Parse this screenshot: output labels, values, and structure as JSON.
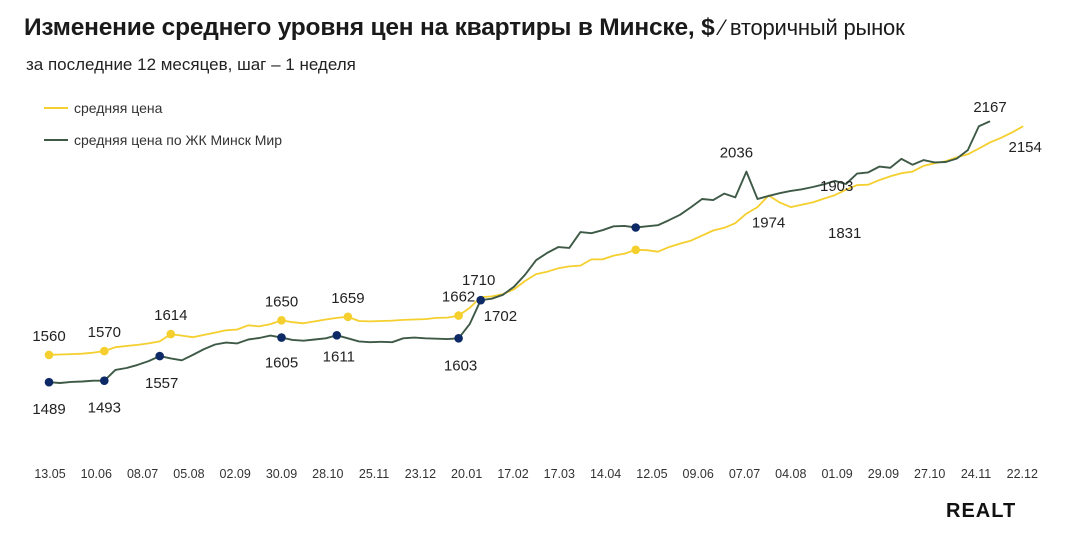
{
  "header": {
    "title": "Изменение среднего уровня цен на квартиры в Минске, $",
    "title_suffix": " ⁄ вторичный рынок",
    "subtitle": "за последние 12 месяцев, шаг – 1 неделя"
  },
  "brand": {
    "logo_text": "REALT"
  },
  "chart_data": {
    "type": "line",
    "title": "Изменение среднего уровня цен на квартиры в Минске, $",
    "xlabel": "",
    "ylabel": "",
    "ylim": [
      1350,
      2250
    ],
    "grid": false,
    "legend_position": "top-left",
    "x_ticks": [
      "13.05",
      "10.06",
      "08.07",
      "05.08",
      "02.09",
      "30.09",
      "28.10",
      "25.11",
      "23.12",
      "20.01",
      "17.02",
      "17.03",
      "14.04",
      "12.05",
      "09.06",
      "07.07",
      "04.08",
      "01.09",
      "29.09",
      "27.10",
      "24.11",
      "22.12"
    ],
    "series": [
      {
        "name": "средняя цена",
        "color": "#f5cf2d",
        "values": [
          1560,
          1561,
          1562,
          1563,
          1566,
          1570,
          1580,
          1583,
          1586,
          1590,
          1595,
          1614,
          1610,
          1606,
          1612,
          1618,
          1624,
          1626,
          1637,
          1634,
          1640,
          1650,
          1645,
          1642,
          1647,
          1652,
          1656,
          1659,
          1648,
          1647,
          1648,
          1649,
          1651,
          1652,
          1653,
          1656,
          1657,
          1662,
          1682,
          1710,
          1712,
          1718,
          1730,
          1752,
          1770,
          1776,
          1785,
          1790,
          1792,
          1808,
          1808,
          1818,
          1823,
          1833,
          1832,
          1828,
          1840,
          1849,
          1857,
          1870,
          1883,
          1890,
          1902,
          1927,
          1944,
          1974,
          1956,
          1944,
          1950,
          1956,
          1966,
          1975,
          1989,
          2001,
          2002,
          2014,
          2024,
          2032,
          2036,
          2051,
          2058,
          2063,
          2073,
          2081,
          2096,
          2112,
          2124,
          2138,
          2154
        ]
      },
      {
        "name": "средняя цена по ЖК Минск Мир",
        "color": "#3e5a47",
        "values": [
          1489,
          1487,
          1490,
          1491,
          1493,
          1493,
          1521,
          1526,
          1534,
          1544,
          1557,
          1551,
          1546,
          1560,
          1575,
          1587,
          1592,
          1590,
          1600,
          1604,
          1610,
          1605,
          1599,
          1597,
          1600,
          1603,
          1611,
          1603,
          1595,
          1593,
          1594,
          1593,
          1603,
          1605,
          1603,
          1602,
          1601,
          1603,
          1640,
          1702,
          1706,
          1716,
          1737,
          1768,
          1806,
          1825,
          1840,
          1838,
          1879,
          1876,
          1884,
          1894,
          1895,
          1891,
          1894,
          1897,
          1910,
          1924,
          1944,
          1965,
          1962,
          1979,
          1969,
          2036,
          1965,
          1973,
          1980,
          1986,
          1990,
          1996,
          2003,
          2012,
          2004,
          2031,
          2034,
          2049,
          2046,
          2069,
          2054,
          2066,
          2060,
          2061,
          2070,
          2092,
          2154,
          2167
        ]
      }
    ],
    "point_labels": [
      {
        "series": 0,
        "index": 0,
        "label": "1560"
      },
      {
        "series": 0,
        "index": 5,
        "label": "1570"
      },
      {
        "series": 0,
        "index": 11,
        "label": "1614"
      },
      {
        "series": 0,
        "index": 21,
        "label": "1650"
      },
      {
        "series": 0,
        "index": 27,
        "label": "1659"
      },
      {
        "series": 0,
        "index": 37,
        "label": "1662"
      },
      {
        "series": 0,
        "index": 39,
        "label": "1710"
      },
      {
        "series": 0,
        "index": 65,
        "label": "1974"
      },
      {
        "series": 0,
        "index": 88,
        "label": "2154"
      },
      {
        "series": 1,
        "index": 0,
        "label": "1489"
      },
      {
        "series": 1,
        "index": 5,
        "label": "1493"
      },
      {
        "series": 1,
        "index": 10,
        "label": "1557"
      },
      {
        "series": 1,
        "index": 21,
        "label": "1605"
      },
      {
        "series": 1,
        "index": 26,
        "label": "1611"
      },
      {
        "series": 1,
        "index": 37,
        "label": "1603"
      },
      {
        "series": 1,
        "index": 39,
        "label": "1702"
      },
      {
        "series": 1,
        "index": 63,
        "label": "2036"
      },
      {
        "series": 1,
        "index": 85,
        "label": "2167"
      }
    ],
    "free_labels": [
      {
        "label": "1903",
        "near": "04.08–01.09, upper line"
      },
      {
        "label": "1831",
        "near": "04.08–01.09, lower line"
      }
    ]
  }
}
